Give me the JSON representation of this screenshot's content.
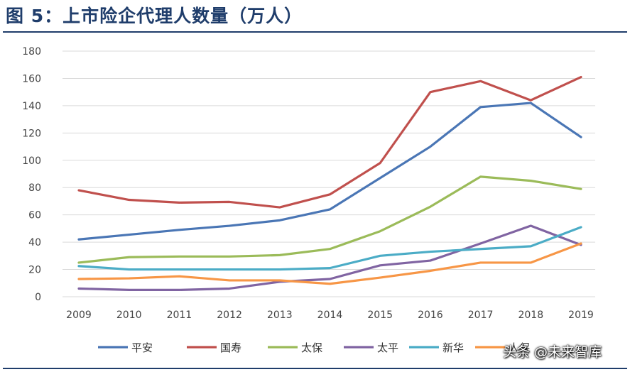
{
  "title": "图 5：上市险企代理人数量（万人）",
  "watermark": "头条 @未来智库",
  "chart_data": {
    "type": "line",
    "title": "图 5：上市险企代理人数量（万人）",
    "xlabel": "",
    "ylabel": "",
    "ylim": [
      0,
      180
    ],
    "yticks": [
      0,
      20,
      40,
      60,
      80,
      100,
      120,
      140,
      160,
      180
    ],
    "grid": true,
    "legend_position": "bottom",
    "categories": [
      "2009",
      "2010",
      "2011",
      "2012",
      "2013",
      "2014",
      "2015",
      "2016",
      "2017",
      "2018",
      "2019"
    ],
    "series": [
      {
        "name": "平安",
        "color": "#4a76b5",
        "values": [
          42,
          45.5,
          49,
          52,
          56,
          64,
          87,
          110,
          139,
          142,
          117
        ]
      },
      {
        "name": "国寿",
        "color": "#c0504d",
        "values": [
          78,
          71,
          69,
          69.5,
          65.5,
          75,
          98,
          150,
          158,
          144,
          161
        ]
      },
      {
        "name": "太保",
        "color": "#9bbb59",
        "values": [
          25,
          29,
          29.5,
          29.5,
          30.5,
          35,
          48,
          66,
          88,
          85,
          79
        ]
      },
      {
        "name": "太平",
        "color": "#8064a2",
        "values": [
          6,
          5,
          5,
          6,
          11,
          13,
          23,
          26.5,
          39,
          52,
          38
        ]
      },
      {
        "name": "新华",
        "color": "#4bacc6",
        "values": [
          22.5,
          20,
          20,
          20,
          20,
          21,
          30,
          33,
          35,
          37,
          51
        ]
      },
      {
        "name": "人保",
        "color": "#f79646",
        "values": [
          13,
          13.5,
          15,
          12,
          12,
          9.5,
          14,
          19,
          25,
          25,
          39
        ]
      }
    ]
  }
}
